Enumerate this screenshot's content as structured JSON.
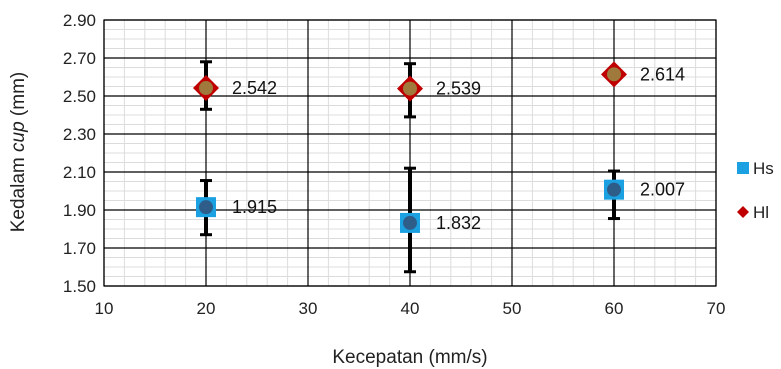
{
  "chart_data": {
    "type": "scatter",
    "xlabel": "Kecepatan (mm/s)",
    "ylabel_parts": [
      "Kedalam ",
      "cup",
      " (mm)"
    ],
    "xlim": [
      10,
      70
    ],
    "ylim": [
      1.5,
      2.9
    ],
    "x_ticks": [
      "10",
      "20",
      "30",
      "40",
      "50",
      "60",
      "70"
    ],
    "y_ticks": [
      "1.50",
      "1.70",
      "1.90",
      "2.10",
      "2.30",
      "2.50",
      "2.70",
      "2.90"
    ],
    "grid": true,
    "legend_position": "right",
    "series": [
      {
        "name": "Hs",
        "marker": "square",
        "color": "#1ba1e2",
        "inner_color": "#2e5d8a",
        "x": [
          20,
          40,
          60
        ],
        "y": [
          1.915,
          1.832,
          2.007
        ],
        "labels": [
          "1.915",
          "1.832",
          "2.007"
        ],
        "error_low": [
          1.77,
          1.575,
          1.855
        ],
        "error_high": [
          2.055,
          2.12,
          2.105
        ]
      },
      {
        "name": "Hl",
        "marker": "diamond",
        "color": "#c00000",
        "inner_color": "#a07a3c",
        "x": [
          20,
          40,
          60
        ],
        "y": [
          2.542,
          2.539,
          2.614
        ],
        "labels": [
          "2.542",
          "2.539",
          "2.614"
        ],
        "error_low": [
          2.43,
          2.39,
          null
        ],
        "error_high": [
          2.68,
          2.67,
          null
        ]
      }
    ]
  }
}
